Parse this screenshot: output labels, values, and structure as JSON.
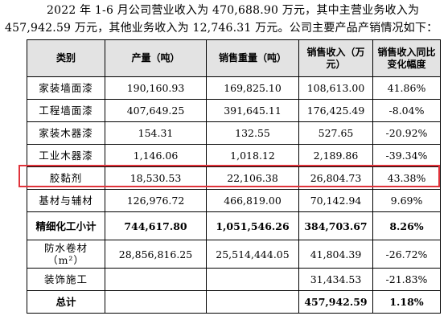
{
  "paragraph": {
    "line1": "2022 年 1-6 月公司营业收入为 470,688.90 万元，其中主营业务收入为",
    "line2": "457,942.59 万元，其他业务收入为 12,746.31 万元。公司主要产品产销情况如下："
  },
  "table": {
    "headers": [
      "类别",
      "产量（吨）",
      "销售重量（吨）",
      "销售收入（万元）",
      "销售收入同比变化幅度"
    ],
    "rows": [
      [
        "家装墙面漆",
        "190,160.93",
        "169,825.10",
        "108,613.00",
        "41.86%"
      ],
      [
        "工程墙面漆",
        "407,649.25",
        "391,645.11",
        "176,425.49",
        "-8.04%"
      ],
      [
        "家装木器漆",
        "154.31",
        "132.55",
        "527.65",
        "-20.92%"
      ],
      [
        "工业木器漆",
        "1,146.06",
        "1,018.12",
        "2,189.86",
        "-39.34%"
      ],
      [
        "胶黏剂",
        "18,530.53",
        "22,106.38",
        "26,804.73",
        "43.38%"
      ],
      [
        "基材与辅材",
        "126,976.72",
        "466,819.00",
        "70,142.94",
        "9.69%"
      ],
      [
        "精细化工小计",
        "744,617.80",
        "1,051,546.26",
        "384,703.67",
        "8.26%"
      ],
      [
        "防水卷材（m²）",
        "28,856,816.25",
        "25,514,444.05",
        "41,804.39",
        "-26.72%"
      ],
      [
        "装饰施工",
        "",
        "",
        "31,434.53",
        "-21.83%"
      ],
      [
        "总计",
        "",
        "",
        "457,942.59",
        "1.18%"
      ]
    ]
  },
  "highlight_color": "#e0333b"
}
